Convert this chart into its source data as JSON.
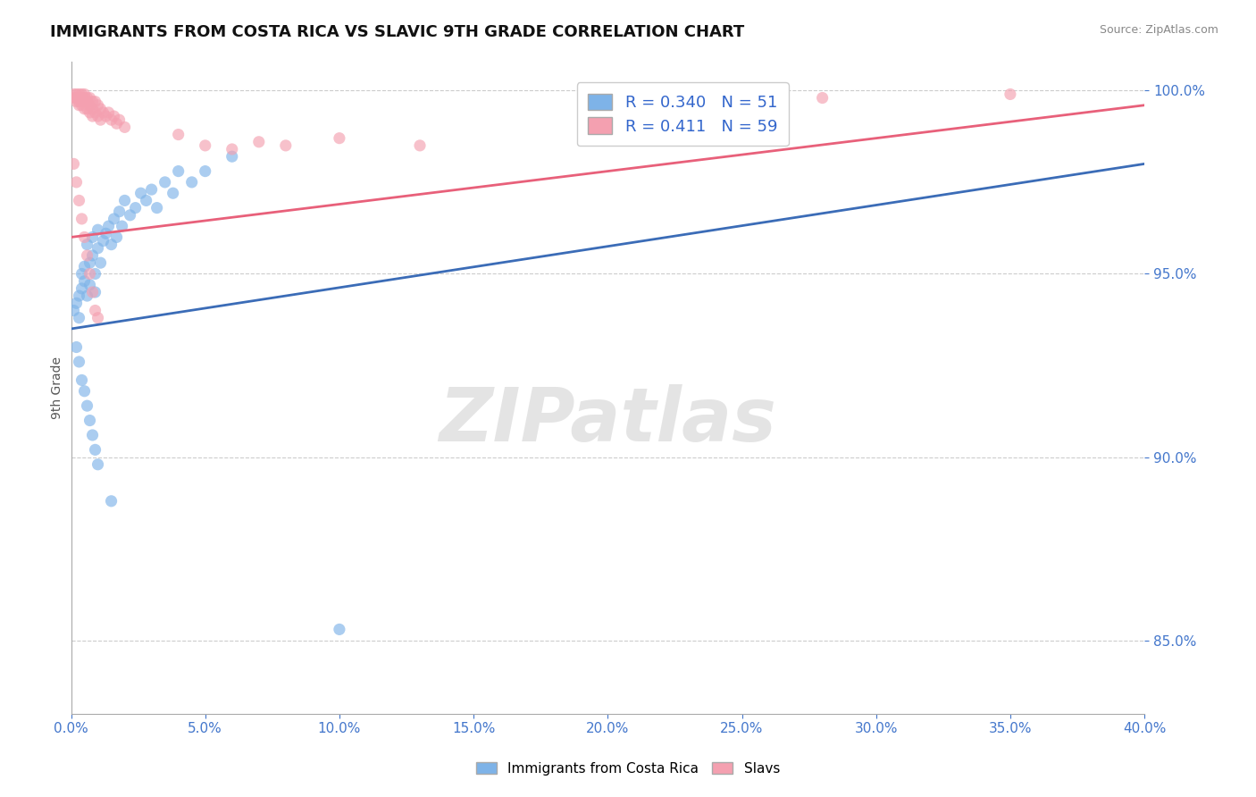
{
  "title": "IMMIGRANTS FROM COSTA RICA VS SLAVIC 9TH GRADE CORRELATION CHART",
  "source": "Source: ZipAtlas.com",
  "ylabel": "9th Grade",
  "xlim": [
    0.0,
    0.4
  ],
  "ylim": [
    0.83,
    1.008
  ],
  "xticks": [
    0.0,
    0.05,
    0.1,
    0.15,
    0.2,
    0.25,
    0.3,
    0.35,
    0.4
  ],
  "yticks": [
    0.85,
    0.9,
    0.95,
    1.0
  ],
  "blue_R": 0.34,
  "blue_N": 51,
  "pink_R": 0.411,
  "pink_N": 59,
  "blue_color": "#7EB3E8",
  "pink_color": "#F4A0B0",
  "blue_line_color": "#3B6CB7",
  "pink_line_color": "#E8607A",
  "legend_label_blue": "Immigrants from Costa Rica",
  "legend_label_pink": "Slavs",
  "watermark": "ZIPatlas",
  "blue_scatter": [
    [
      0.001,
      0.94
    ],
    [
      0.002,
      0.942
    ],
    [
      0.003,
      0.938
    ],
    [
      0.003,
      0.944
    ],
    [
      0.004,
      0.946
    ],
    [
      0.004,
      0.95
    ],
    [
      0.005,
      0.948
    ],
    [
      0.005,
      0.952
    ],
    [
      0.006,
      0.944
    ],
    [
      0.006,
      0.958
    ],
    [
      0.007,
      0.947
    ],
    [
      0.007,
      0.953
    ],
    [
      0.008,
      0.955
    ],
    [
      0.008,
      0.96
    ],
    [
      0.009,
      0.95
    ],
    [
      0.009,
      0.945
    ],
    [
      0.01,
      0.957
    ],
    [
      0.01,
      0.962
    ],
    [
      0.011,
      0.953
    ],
    [
      0.012,
      0.959
    ],
    [
      0.013,
      0.961
    ],
    [
      0.014,
      0.963
    ],
    [
      0.015,
      0.958
    ],
    [
      0.016,
      0.965
    ],
    [
      0.017,
      0.96
    ],
    [
      0.018,
      0.967
    ],
    [
      0.019,
      0.963
    ],
    [
      0.02,
      0.97
    ],
    [
      0.022,
      0.966
    ],
    [
      0.024,
      0.968
    ],
    [
      0.026,
      0.972
    ],
    [
      0.028,
      0.97
    ],
    [
      0.03,
      0.973
    ],
    [
      0.032,
      0.968
    ],
    [
      0.035,
      0.975
    ],
    [
      0.038,
      0.972
    ],
    [
      0.04,
      0.978
    ],
    [
      0.045,
      0.975
    ],
    [
      0.05,
      0.978
    ],
    [
      0.06,
      0.982
    ],
    [
      0.002,
      0.93
    ],
    [
      0.003,
      0.926
    ],
    [
      0.004,
      0.921
    ],
    [
      0.005,
      0.918
    ],
    [
      0.006,
      0.914
    ],
    [
      0.007,
      0.91
    ],
    [
      0.008,
      0.906
    ],
    [
      0.009,
      0.902
    ],
    [
      0.01,
      0.898
    ],
    [
      0.015,
      0.888
    ],
    [
      0.1,
      0.853
    ]
  ],
  "pink_scatter": [
    [
      0.001,
      0.999
    ],
    [
      0.001,
      0.998
    ],
    [
      0.002,
      0.999
    ],
    [
      0.002,
      0.998
    ],
    [
      0.002,
      0.997
    ],
    [
      0.003,
      0.999
    ],
    [
      0.003,
      0.998
    ],
    [
      0.003,
      0.997
    ],
    [
      0.003,
      0.996
    ],
    [
      0.004,
      0.999
    ],
    [
      0.004,
      0.998
    ],
    [
      0.004,
      0.997
    ],
    [
      0.004,
      0.996
    ],
    [
      0.005,
      0.999
    ],
    [
      0.005,
      0.998
    ],
    [
      0.005,
      0.997
    ],
    [
      0.005,
      0.995
    ],
    [
      0.006,
      0.998
    ],
    [
      0.006,
      0.997
    ],
    [
      0.006,
      0.995
    ],
    [
      0.007,
      0.998
    ],
    [
      0.007,
      0.996
    ],
    [
      0.007,
      0.994
    ],
    [
      0.008,
      0.997
    ],
    [
      0.008,
      0.995
    ],
    [
      0.008,
      0.993
    ],
    [
      0.009,
      0.997
    ],
    [
      0.009,
      0.994
    ],
    [
      0.01,
      0.996
    ],
    [
      0.01,
      0.993
    ],
    [
      0.011,
      0.995
    ],
    [
      0.011,
      0.992
    ],
    [
      0.012,
      0.994
    ],
    [
      0.013,
      0.993
    ],
    [
      0.014,
      0.994
    ],
    [
      0.015,
      0.992
    ],
    [
      0.016,
      0.993
    ],
    [
      0.017,
      0.991
    ],
    [
      0.018,
      0.992
    ],
    [
      0.02,
      0.99
    ],
    [
      0.001,
      0.98
    ],
    [
      0.002,
      0.975
    ],
    [
      0.003,
      0.97
    ],
    [
      0.004,
      0.965
    ],
    [
      0.005,
      0.96
    ],
    [
      0.006,
      0.955
    ],
    [
      0.007,
      0.95
    ],
    [
      0.008,
      0.945
    ],
    [
      0.009,
      0.94
    ],
    [
      0.01,
      0.938
    ],
    [
      0.28,
      0.998
    ],
    [
      0.35,
      0.999
    ],
    [
      0.04,
      0.988
    ],
    [
      0.05,
      0.985
    ],
    [
      0.06,
      0.984
    ],
    [
      0.07,
      0.986
    ],
    [
      0.08,
      0.985
    ],
    [
      0.1,
      0.987
    ],
    [
      0.13,
      0.985
    ]
  ],
  "blue_trendline": [
    0.0,
    0.935,
    0.4,
    0.98
  ],
  "pink_trendline": [
    0.0,
    0.96,
    0.4,
    0.996
  ]
}
